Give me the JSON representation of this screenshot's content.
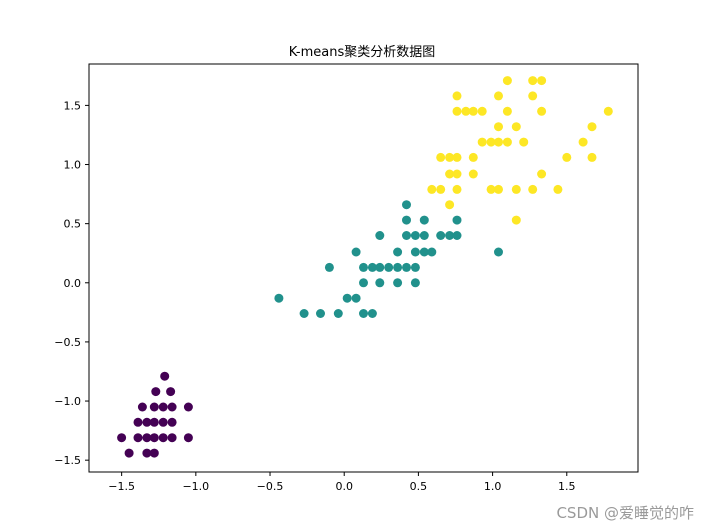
{
  "chart_data": {
    "type": "scatter",
    "title": "K-means聚类分析数据图",
    "xlabel": "",
    "ylabel": "",
    "xlim": [
      -1.72,
      1.98
    ],
    "ylim": [
      -1.6,
      1.85
    ],
    "xticks": [
      -1.5,
      -1.0,
      -0.5,
      0.0,
      0.5,
      1.0,
      1.5
    ],
    "xtick_labels": [
      "−1.5",
      "−1.0",
      "−0.5",
      "0.0",
      "0.5",
      "1.0",
      "1.5"
    ],
    "yticks": [
      -1.5,
      -1.0,
      -0.5,
      0.0,
      0.5,
      1.0,
      1.5
    ],
    "ytick_labels": [
      "−1.5",
      "−1.0",
      "−0.5",
      "0.0",
      "0.5",
      "1.0",
      "1.5"
    ],
    "grid": false,
    "series": [
      {
        "color": "#440154",
        "points": [
          [
            -1.21,
            -0.79
          ],
          [
            -1.17,
            -0.92
          ],
          [
            -1.27,
            -0.92
          ],
          [
            -1.36,
            -1.05
          ],
          [
            -1.28,
            -1.05
          ],
          [
            -1.22,
            -1.05
          ],
          [
            -1.16,
            -1.05
          ],
          [
            -1.05,
            -1.05
          ],
          [
            -1.39,
            -1.18
          ],
          [
            -1.33,
            -1.18
          ],
          [
            -1.28,
            -1.18
          ],
          [
            -1.22,
            -1.18
          ],
          [
            -1.16,
            -1.18
          ],
          [
            -1.5,
            -1.31
          ],
          [
            -1.39,
            -1.31
          ],
          [
            -1.33,
            -1.31
          ],
          [
            -1.28,
            -1.31
          ],
          [
            -1.22,
            -1.31
          ],
          [
            -1.16,
            -1.31
          ],
          [
            -1.05,
            -1.31
          ],
          [
            -1.45,
            -1.44
          ],
          [
            -1.33,
            -1.44
          ],
          [
            -1.28,
            -1.44
          ]
        ]
      },
      {
        "color": "#21918c",
        "points": [
          [
            0.42,
            0.66
          ],
          [
            0.42,
            0.53
          ],
          [
            0.54,
            0.53
          ],
          [
            0.24,
            0.4
          ],
          [
            0.42,
            0.4
          ],
          [
            0.48,
            0.4
          ],
          [
            0.54,
            0.4
          ],
          [
            0.65,
            0.4
          ],
          [
            0.71,
            0.4
          ],
          [
            0.76,
            0.4
          ],
          [
            0.76,
            0.53
          ],
          [
            0.08,
            0.26
          ],
          [
            0.36,
            0.26
          ],
          [
            0.48,
            0.26
          ],
          [
            0.54,
            0.26
          ],
          [
            0.59,
            0.26
          ],
          [
            1.04,
            0.26
          ],
          [
            -0.1,
            0.13
          ],
          [
            0.13,
            0.13
          ],
          [
            0.19,
            0.13
          ],
          [
            0.24,
            0.13
          ],
          [
            0.3,
            0.13
          ],
          [
            0.36,
            0.13
          ],
          [
            0.42,
            0.13
          ],
          [
            0.48,
            0.13
          ],
          [
            0.13,
            0.0
          ],
          [
            0.24,
            0.0
          ],
          [
            0.36,
            0.0
          ],
          [
            0.48,
            0.0
          ],
          [
            -0.44,
            -0.13
          ],
          [
            0.02,
            -0.13
          ],
          [
            0.08,
            -0.13
          ],
          [
            -0.27,
            -0.26
          ],
          [
            -0.16,
            -0.26
          ],
          [
            -0.04,
            -0.26
          ],
          [
            0.13,
            -0.26
          ],
          [
            0.19,
            -0.26
          ]
        ]
      },
      {
        "color": "#fde725",
        "points": [
          [
            1.1,
            1.71
          ],
          [
            1.27,
            1.71
          ],
          [
            1.33,
            1.71
          ],
          [
            0.76,
            1.58
          ],
          [
            1.04,
            1.58
          ],
          [
            1.27,
            1.58
          ],
          [
            0.76,
            1.45
          ],
          [
            0.82,
            1.45
          ],
          [
            0.87,
            1.45
          ],
          [
            0.93,
            1.45
          ],
          [
            1.1,
            1.45
          ],
          [
            1.33,
            1.45
          ],
          [
            1.78,
            1.45
          ],
          [
            1.04,
            1.32
          ],
          [
            1.16,
            1.32
          ],
          [
            1.67,
            1.32
          ],
          [
            0.93,
            1.19
          ],
          [
            0.99,
            1.19
          ],
          [
            1.04,
            1.19
          ],
          [
            1.1,
            1.19
          ],
          [
            1.21,
            1.19
          ],
          [
            1.61,
            1.19
          ],
          [
            0.65,
            1.06
          ],
          [
            0.71,
            1.06
          ],
          [
            0.76,
            1.06
          ],
          [
            0.87,
            1.06
          ],
          [
            1.5,
            1.06
          ],
          [
            1.67,
            1.06
          ],
          [
            0.71,
            0.92
          ],
          [
            0.76,
            0.92
          ],
          [
            0.87,
            0.92
          ],
          [
            1.33,
            0.92
          ],
          [
            0.59,
            0.79
          ],
          [
            0.65,
            0.79
          ],
          [
            0.76,
            0.79
          ],
          [
            0.99,
            0.79
          ],
          [
            1.04,
            0.79
          ],
          [
            1.16,
            0.79
          ],
          [
            1.27,
            0.79
          ],
          [
            1.44,
            0.79
          ],
          [
            0.71,
            0.66
          ],
          [
            1.16,
            0.53
          ]
        ]
      }
    ]
  },
  "watermark": "CSDN @爱睡觉的咋"
}
